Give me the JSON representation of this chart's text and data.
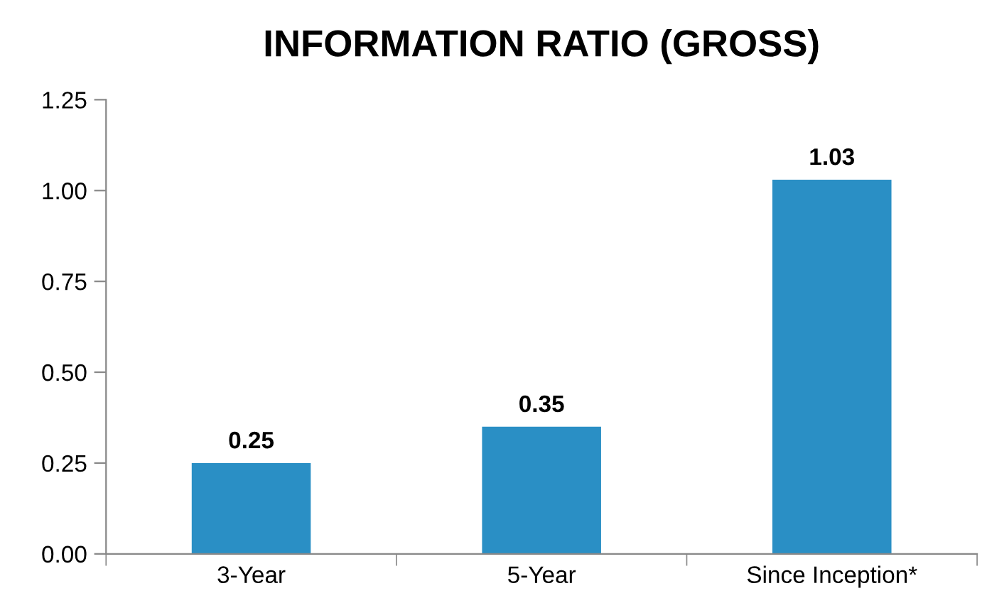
{
  "chart_data": {
    "type": "bar",
    "title": "INFORMATION RATIO (GROSS)",
    "categories": [
      "3-Year",
      "5-Year",
      "Since Inception*"
    ],
    "values": [
      0.25,
      0.35,
      1.03
    ],
    "color": "#2a8fc5",
    "ylim": [
      0,
      1.25
    ],
    "yticks": [
      {
        "value": 0,
        "label": "0.00"
      },
      {
        "value": 0.25,
        "label": "0.25"
      },
      {
        "value": 0.5,
        "label": "0.50"
      },
      {
        "value": 0.75,
        "label": "0.75"
      },
      {
        "value": 1.0,
        "label": "1.00"
      },
      {
        "value": 1.25,
        "label": "1.25"
      }
    ],
    "data_labels": true,
    "grid": false
  }
}
